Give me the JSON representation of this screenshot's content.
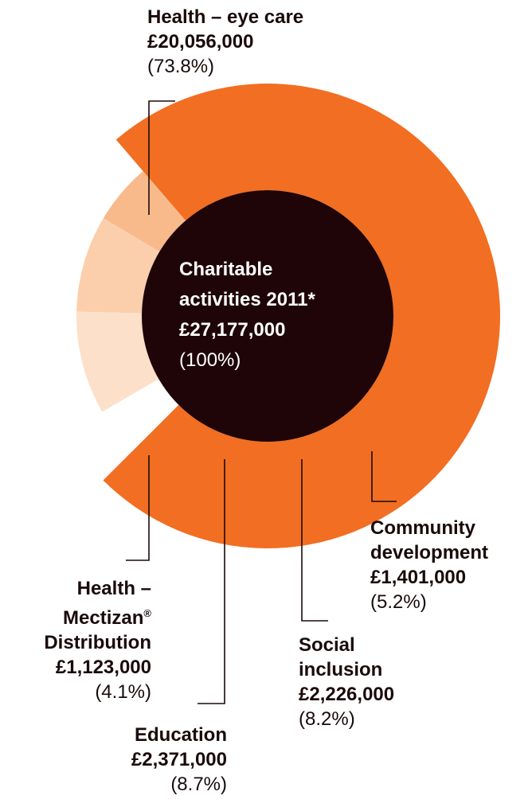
{
  "chart_data": {
    "type": "pie",
    "center": {
      "title_line1": "Charitable",
      "title_line2": "activities 2011*",
      "total": "£27,177,000",
      "percent": "(100%)"
    },
    "slices": [
      {
        "key": "eye",
        "name_lines": [
          "Health – eye care"
        ],
        "amount_text": "£20,056,000",
        "percent_text": "(73.8%)",
        "value": 20056000,
        "percent": 73.8,
        "color": "#f26e22"
      },
      {
        "key": "community",
        "name_lines": [
          "Community",
          "development"
        ],
        "amount_text": "£1,401,000",
        "percent_text": "(5.2%)",
        "value": 1401000,
        "percent": 5.2,
        "color": "#f8b98b"
      },
      {
        "key": "social",
        "name_lines": [
          "Social",
          "inclusion"
        ],
        "amount_text": "£2,226,000",
        "percent_text": "(8.2%)",
        "value": 2226000,
        "percent": 8.2,
        "color": "#fbcfac"
      },
      {
        "key": "education",
        "name_lines": [
          "Education"
        ],
        "amount_text": "£2,371,000",
        "percent_text": "(8.7%)",
        "value": 2371000,
        "percent": 8.7,
        "color": "#fde0c9"
      },
      {
        "key": "mectizan",
        "name_lines": [
          "Health –",
          "Mectizan",
          "Distribution"
        ],
        "name_superscript": "®",
        "amount_text": "£1,123,000",
        "percent_text": "(4.1%)",
        "value": 1123000,
        "percent": 4.1,
        "color": "#ffffff"
      }
    ],
    "colors": {
      "center": "#1f0507",
      "leader": "#1a0a0a"
    }
  }
}
